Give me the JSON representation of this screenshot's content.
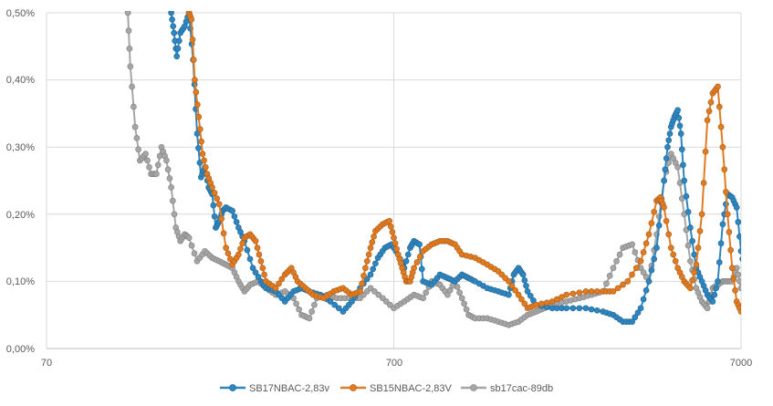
{
  "chart_data": {
    "type": "line",
    "title": "",
    "xlabel": "",
    "ylabel": "",
    "x_scale": "log",
    "xlim": [
      70,
      7000
    ],
    "ylim": [
      0,
      0.5
    ],
    "x_tick_labels": [
      "70",
      "700",
      "7000"
    ],
    "y_tick_labels": [
      "0,00%",
      "0,10%",
      "0,20%",
      "0,30%",
      "0,40%",
      "0,50%"
    ],
    "grid": true,
    "legend_position": "bottom",
    "series": [
      {
        "name": "SB17NBAC-2,83v",
        "color": "#2e86c1",
        "points": [
          [
            160,
            0.5
          ],
          [
            163,
            0.47
          ],
          [
            166,
            0.435
          ],
          [
            170,
            0.47
          ],
          [
            175,
            0.48
          ],
          [
            180,
            0.5
          ],
          [
            185,
            0.43
          ],
          [
            190,
            0.32
          ],
          [
            195,
            0.255
          ],
          [
            200,
            0.27
          ],
          [
            205,
            0.24
          ],
          [
            210,
            0.23
          ],
          [
            215,
            0.18
          ],
          [
            220,
            0.19
          ],
          [
            225,
            0.205
          ],
          [
            230,
            0.21
          ],
          [
            240,
            0.205
          ],
          [
            250,
            0.18
          ],
          [
            260,
            0.16
          ],
          [
            275,
            0.12
          ],
          [
            290,
            0.1
          ],
          [
            300,
            0.09
          ],
          [
            320,
            0.085
          ],
          [
            340,
            0.07
          ],
          [
            360,
            0.085
          ],
          [
            380,
            0.09
          ],
          [
            400,
            0.085
          ],
          [
            430,
            0.08
          ],
          [
            460,
            0.07
          ],
          [
            500,
            0.055
          ],
          [
            530,
            0.07
          ],
          [
            560,
            0.09
          ],
          [
            600,
            0.11
          ],
          [
            630,
            0.135
          ],
          [
            660,
            0.15
          ],
          [
            690,
            0.155
          ],
          [
            720,
            0.14
          ],
          [
            750,
            0.12
          ],
          [
            780,
            0.15
          ],
          [
            800,
            0.16
          ],
          [
            830,
            0.155
          ],
          [
            850,
            0.1
          ],
          [
            900,
            0.095
          ],
          [
            950,
            0.11
          ],
          [
            1000,
            0.105
          ],
          [
            1050,
            0.1
          ],
          [
            1100,
            0.11
          ],
          [
            1150,
            0.105
          ],
          [
            1200,
            0.1
          ],
          [
            1300,
            0.09
          ],
          [
            1400,
            0.085
          ],
          [
            1500,
            0.08
          ],
          [
            1550,
            0.11
          ],
          [
            1600,
            0.12
          ],
          [
            1650,
            0.11
          ],
          [
            1700,
            0.085
          ],
          [
            1800,
            0.065
          ],
          [
            2000,
            0.06
          ],
          [
            2200,
            0.06
          ],
          [
            2500,
            0.06
          ],
          [
            2800,
            0.055
          ],
          [
            3000,
            0.05
          ],
          [
            3200,
            0.04
          ],
          [
            3400,
            0.04
          ],
          [
            3600,
            0.06
          ],
          [
            3800,
            0.1
          ],
          [
            4000,
            0.15
          ],
          [
            4200,
            0.25
          ],
          [
            4300,
            0.3
          ],
          [
            4400,
            0.33
          ],
          [
            4500,
            0.345
          ],
          [
            4600,
            0.355
          ],
          [
            4700,
            0.32
          ],
          [
            4800,
            0.25
          ],
          [
            5000,
            0.18
          ],
          [
            5200,
            0.12
          ],
          [
            5400,
            0.1
          ],
          [
            5600,
            0.08
          ],
          [
            5800,
            0.07
          ],
          [
            6000,
            0.1
          ],
          [
            6200,
            0.185
          ],
          [
            6400,
            0.23
          ],
          [
            6600,
            0.225
          ],
          [
            6800,
            0.21
          ],
          [
            7000,
            0.145
          ],
          [
            7200,
            0.11
          ]
        ]
      },
      {
        "name": "SB15NBAC-2,83V",
        "color": "#e07b22",
        "points": [
          [
            180,
            0.5
          ],
          [
            183,
            0.49
          ],
          [
            187,
            0.4
          ],
          [
            192,
            0.345
          ],
          [
            197,
            0.29
          ],
          [
            203,
            0.26
          ],
          [
            210,
            0.24
          ],
          [
            220,
            0.215
          ],
          [
            230,
            0.15
          ],
          [
            240,
            0.125
          ],
          [
            250,
            0.14
          ],
          [
            260,
            0.165
          ],
          [
            270,
            0.17
          ],
          [
            280,
            0.16
          ],
          [
            290,
            0.13
          ],
          [
            300,
            0.1
          ],
          [
            320,
            0.09
          ],
          [
            340,
            0.11
          ],
          [
            355,
            0.12
          ],
          [
            370,
            0.1
          ],
          [
            390,
            0.09
          ],
          [
            410,
            0.08
          ],
          [
            440,
            0.075
          ],
          [
            470,
            0.085
          ],
          [
            500,
            0.09
          ],
          [
            530,
            0.08
          ],
          [
            560,
            0.085
          ],
          [
            580,
            0.12
          ],
          [
            600,
            0.15
          ],
          [
            620,
            0.175
          ],
          [
            650,
            0.185
          ],
          [
            680,
            0.19
          ],
          [
            700,
            0.165
          ],
          [
            720,
            0.14
          ],
          [
            740,
            0.12
          ],
          [
            760,
            0.1
          ],
          [
            780,
            0.1
          ],
          [
            800,
            0.12
          ],
          [
            850,
            0.145
          ],
          [
            900,
            0.155
          ],
          [
            950,
            0.16
          ],
          [
            1000,
            0.16
          ],
          [
            1050,
            0.155
          ],
          [
            1100,
            0.14
          ],
          [
            1200,
            0.135
          ],
          [
            1300,
            0.125
          ],
          [
            1400,
            0.115
          ],
          [
            1500,
            0.1
          ],
          [
            1600,
            0.08
          ],
          [
            1700,
            0.06
          ],
          [
            1800,
            0.065
          ],
          [
            2000,
            0.07
          ],
          [
            2200,
            0.08
          ],
          [
            2500,
            0.085
          ],
          [
            2800,
            0.085
          ],
          [
            3000,
            0.085
          ],
          [
            3300,
            0.1
          ],
          [
            3600,
            0.13
          ],
          [
            3800,
            0.17
          ],
          [
            4000,
            0.22
          ],
          [
            4100,
            0.225
          ],
          [
            4200,
            0.21
          ],
          [
            4400,
            0.15
          ],
          [
            4600,
            0.12
          ],
          [
            4800,
            0.1
          ],
          [
            5000,
            0.09
          ],
          [
            5200,
            0.125
          ],
          [
            5400,
            0.2
          ],
          [
            5600,
            0.34
          ],
          [
            5800,
            0.38
          ],
          [
            6000,
            0.39
          ],
          [
            6200,
            0.3
          ],
          [
            6400,
            0.2
          ],
          [
            6600,
            0.12
          ],
          [
            6800,
            0.07
          ],
          [
            7000,
            0.055
          ]
        ]
      },
      {
        "name": "sb17cac-89db",
        "color": "#a6a6a6",
        "points": [
          [
            120,
            0.5
          ],
          [
            122,
            0.42
          ],
          [
            126,
            0.33
          ],
          [
            130,
            0.28
          ],
          [
            135,
            0.29
          ],
          [
            140,
            0.26
          ],
          [
            145,
            0.26
          ],
          [
            150,
            0.3
          ],
          [
            155,
            0.28
          ],
          [
            160,
            0.24
          ],
          [
            165,
            0.18
          ],
          [
            170,
            0.16
          ],
          [
            175,
            0.17
          ],
          [
            180,
            0.165
          ],
          [
            190,
            0.13
          ],
          [
            200,
            0.145
          ],
          [
            210,
            0.135
          ],
          [
            220,
            0.13
          ],
          [
            230,
            0.125
          ],
          [
            240,
            0.12
          ],
          [
            250,
            0.1
          ],
          [
            260,
            0.085
          ],
          [
            270,
            0.095
          ],
          [
            285,
            0.1
          ],
          [
            300,
            0.09
          ],
          [
            320,
            0.08
          ],
          [
            340,
            0.085
          ],
          [
            360,
            0.075
          ],
          [
            380,
            0.05
          ],
          [
            400,
            0.045
          ],
          [
            420,
            0.075
          ],
          [
            450,
            0.08
          ],
          [
            480,
            0.075
          ],
          [
            520,
            0.075
          ],
          [
            560,
            0.075
          ],
          [
            600,
            0.09
          ],
          [
            650,
            0.075
          ],
          [
            700,
            0.06
          ],
          [
            750,
            0.07
          ],
          [
            800,
            0.08
          ],
          [
            850,
            0.075
          ],
          [
            900,
            0.1
          ],
          [
            950,
            0.095
          ],
          [
            1000,
            0.08
          ],
          [
            1050,
            0.1
          ],
          [
            1100,
            0.075
          ],
          [
            1150,
            0.05
          ],
          [
            1200,
            0.045
          ],
          [
            1300,
            0.045
          ],
          [
            1400,
            0.04
          ],
          [
            1500,
            0.035
          ],
          [
            1600,
            0.04
          ],
          [
            1700,
            0.05
          ],
          [
            1800,
            0.055
          ],
          [
            1900,
            0.06
          ],
          [
            2000,
            0.065
          ],
          [
            2200,
            0.07
          ],
          [
            2400,
            0.075
          ],
          [
            2600,
            0.08
          ],
          [
            2800,
            0.085
          ],
          [
            3000,
            0.12
          ],
          [
            3200,
            0.15
          ],
          [
            3400,
            0.155
          ],
          [
            3600,
            0.12
          ],
          [
            3800,
            0.1
          ],
          [
            4000,
            0.17
          ],
          [
            4200,
            0.25
          ],
          [
            4400,
            0.29
          ],
          [
            4600,
            0.27
          ],
          [
            4800,
            0.2
          ],
          [
            5000,
            0.13
          ],
          [
            5200,
            0.09
          ],
          [
            5400,
            0.07
          ],
          [
            5600,
            0.06
          ],
          [
            5800,
            0.09
          ],
          [
            6000,
            0.095
          ],
          [
            6200,
            0.1
          ],
          [
            6400,
            0.1
          ],
          [
            6600,
            0.1
          ],
          [
            6800,
            0.12
          ],
          [
            7000,
            0.09
          ]
        ]
      }
    ]
  }
}
